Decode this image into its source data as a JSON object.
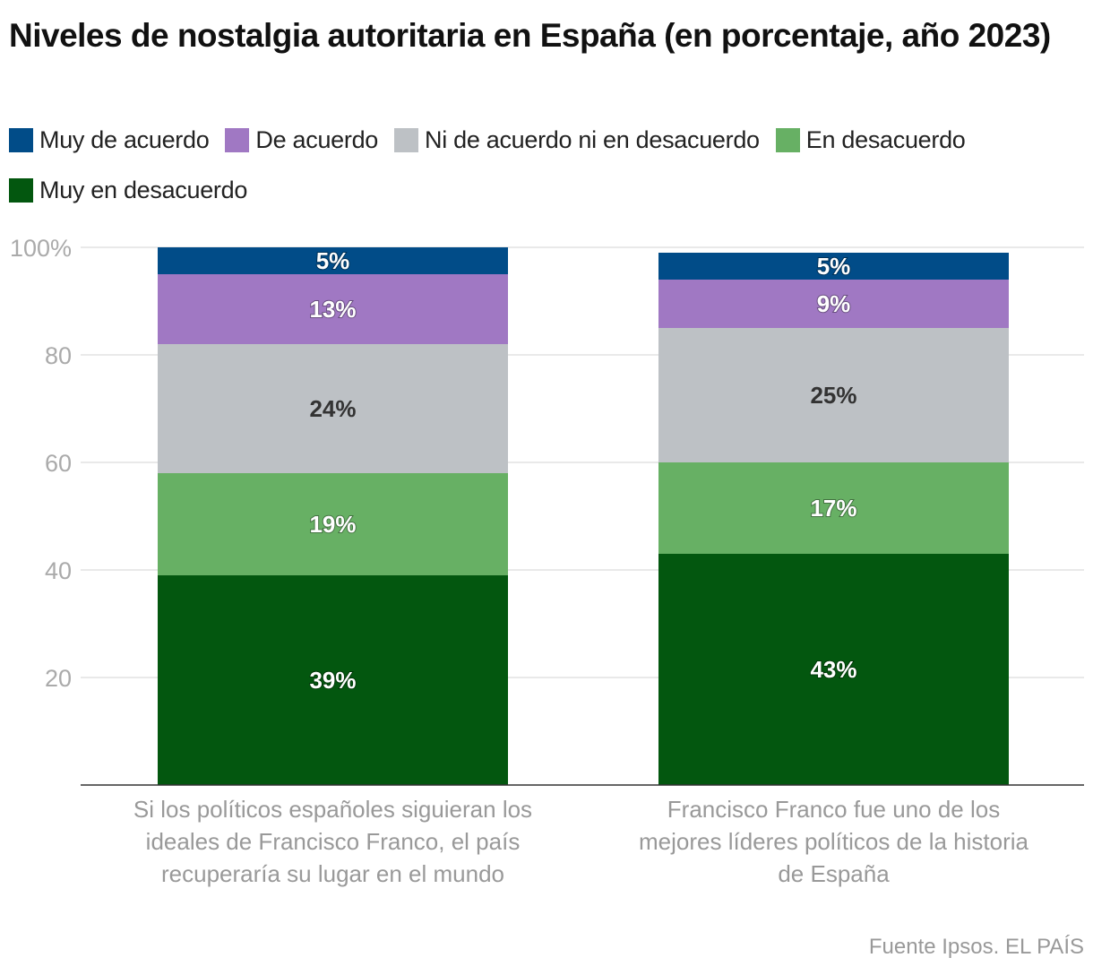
{
  "title": "Niveles de nostalgia autoritaria en España (en porcentaje, año 2023)",
  "source": "Fuente Ipsos. EL PAÍS",
  "chart_data": {
    "type": "bar",
    "stacked": true,
    "categories": [
      "Si los políticos españoles siguieran los ideales de Francisco Franco, el país recuperaría su lugar en el mundo",
      "Francisco Franco fue uno de los mejores líderes políticos de la historia de España"
    ],
    "category_lines": [
      [
        "Si los políticos españoles siguieran los",
        "ideales de Francisco Franco, el país",
        "recuperaría su lugar en el mundo"
      ],
      [
        "Francisco Franco fue uno de los",
        "mejores líderes políticos de la historia",
        "de España"
      ]
    ],
    "series": [
      {
        "name": "Muy en desacuerdo",
        "color": "#03570f",
        "label_color": "#ffffff",
        "values": [
          39,
          43
        ]
      },
      {
        "name": "En desacuerdo",
        "color": "#67b064",
        "label_color": "#ffffff",
        "values": [
          19,
          17
        ]
      },
      {
        "name": "Ni de acuerdo ni en desacuerdo",
        "color": "#bdc1c5",
        "label_color": "#333333",
        "values": [
          24,
          25
        ]
      },
      {
        "name": "De acuerdo",
        "color": "#a078c3",
        "label_color": "#ffffff",
        "values": [
          13,
          9
        ]
      },
      {
        "name": "Muy de acuerdo",
        "color": "#014c88",
        "label_color": "#ffffff",
        "values": [
          5,
          5
        ]
      }
    ],
    "legend_order": [
      "Muy de acuerdo",
      "De acuerdo",
      "Ni de acuerdo ni en desacuerdo",
      "En desacuerdo",
      "Muy en desacuerdo"
    ],
    "yticks": [
      "20",
      "40",
      "60",
      "80",
      "100%"
    ],
    "ytick_values": [
      20,
      40,
      60,
      80,
      100
    ],
    "ylim": [
      0,
      100
    ],
    "grid": true,
    "legend_position": "top-left"
  }
}
